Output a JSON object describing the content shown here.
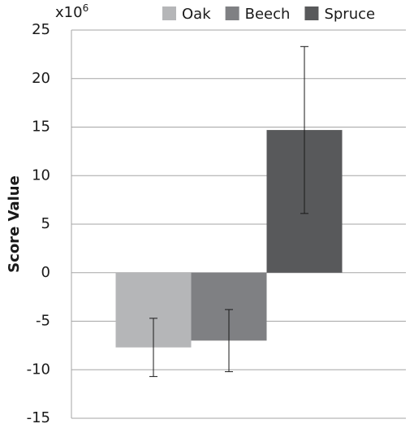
{
  "chart_data": {
    "type": "bar",
    "y_label": "Score Value",
    "y_multiplier": "x10",
    "y_multiplier_exponent": "6",
    "categories": [
      null
    ],
    "series": [
      {
        "name": "Oak",
        "color": "#b5b6b8",
        "values": [
          -7.7
        ],
        "errors": [
          3.0
        ]
      },
      {
        "name": "Beech",
        "color": "#7f8083",
        "values": [
          -7.0
        ],
        "errors": [
          3.2
        ]
      },
      {
        "name": "Spruce",
        "color": "#58595b",
        "values": [
          14.7
        ],
        "errors": [
          8.6
        ]
      }
    ],
    "ylim": [
      -15,
      25
    ],
    "yticks": [
      -15,
      -10,
      -5,
      0,
      5,
      10,
      15,
      20,
      25
    ],
    "grid": true,
    "legend": "top"
  }
}
